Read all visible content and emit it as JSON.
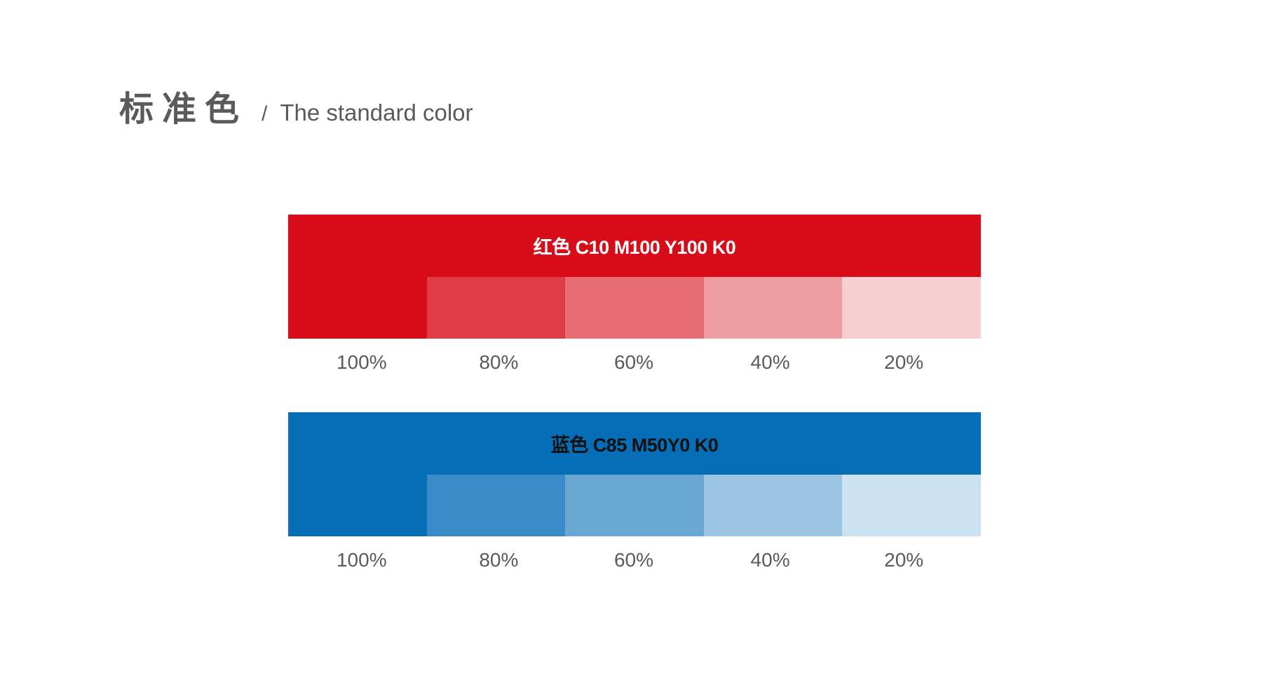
{
  "header": {
    "title_cn": "标准色",
    "separator": "/",
    "title_en": "The standard color"
  },
  "swatches": [
    {
      "label": "红色 C10 M100 Y100 K0",
      "label_color": "#ffffff",
      "base_color": "#d80c18",
      "tints": [
        {
          "percent": "100%",
          "color": "#d80c18"
        },
        {
          "percent": "80%",
          "color": "#e03c47"
        },
        {
          "percent": "60%",
          "color": "#e86d73"
        },
        {
          "percent": "40%",
          "color": "#f09da1"
        },
        {
          "percent": "20%",
          "color": "#f7ced1"
        }
      ]
    },
    {
      "label": "蓝色 C85 M50Y0 K0",
      "label_color": "#111111",
      "base_color": "#066eb7",
      "tints": [
        {
          "percent": "100%",
          "color": "#066eb7"
        },
        {
          "percent": "80%",
          "color": "#388bc6"
        },
        {
          "percent": "60%",
          "color": "#6aa8d4"
        },
        {
          "percent": "40%",
          "color": "#9bc5e2"
        },
        {
          "percent": "20%",
          "color": "#cde2f1"
        }
      ]
    }
  ]
}
